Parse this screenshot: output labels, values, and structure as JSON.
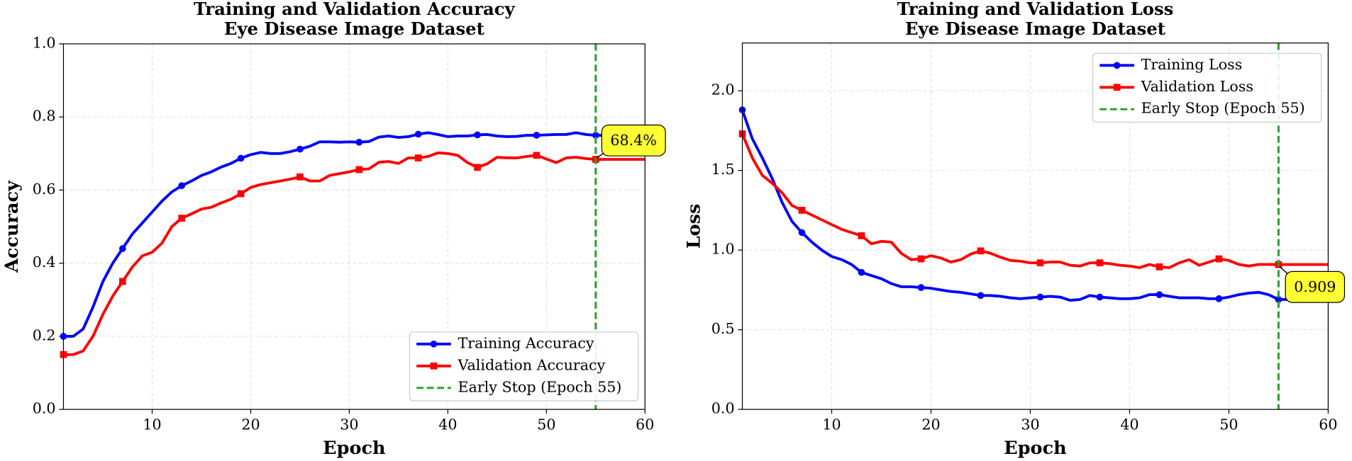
{
  "chart_data": [
    {
      "type": "line",
      "title": "Training and Validation Accuracy",
      "subtitle": "Eye Disease Image Dataset",
      "xlabel": "Epoch",
      "ylabel": "Accuracy",
      "x": [
        1,
        2,
        3,
        4,
        5,
        6,
        7,
        8,
        9,
        10,
        11,
        12,
        13,
        14,
        15,
        16,
        17,
        18,
        19,
        20,
        21,
        22,
        23,
        24,
        25,
        26,
        27,
        28,
        29,
        30,
        31,
        32,
        33,
        34,
        35,
        36,
        37,
        38,
        39,
        40,
        41,
        42,
        43,
        44,
        45,
        46,
        47,
        48,
        49,
        50,
        51,
        52,
        53,
        54,
        55,
        56,
        57,
        58,
        59,
        60
      ],
      "series": [
        {
          "name": "Training Accuracy",
          "color": "#0000ff",
          "marker": "circle",
          "values": [
            0.2,
            0.2,
            0.22,
            0.28,
            0.35,
            0.4,
            0.44,
            0.48,
            0.51,
            0.54,
            0.57,
            0.595,
            0.612,
            0.625,
            0.64,
            0.65,
            0.663,
            0.673,
            0.687,
            0.697,
            0.703,
            0.7,
            0.7,
            0.705,
            0.712,
            0.72,
            0.732,
            0.732,
            0.731,
            0.732,
            0.731,
            0.733,
            0.745,
            0.748,
            0.744,
            0.746,
            0.753,
            0.757,
            0.752,
            0.746,
            0.748,
            0.748,
            0.751,
            0.752,
            0.748,
            0.746,
            0.747,
            0.75,
            0.75,
            0.751,
            0.752,
            0.752,
            0.757,
            0.752,
            0.75,
            0.75,
            0.75,
            0.75,
            0.75,
            0.75
          ]
        },
        {
          "name": "Validation Accuracy",
          "color": "#ff0000",
          "marker": "square",
          "values": [
            0.15,
            0.15,
            0.16,
            0.2,
            0.26,
            0.31,
            0.35,
            0.39,
            0.42,
            0.43,
            0.455,
            0.5,
            0.523,
            0.535,
            0.548,
            0.553,
            0.565,
            0.575,
            0.59,
            0.607,
            0.615,
            0.62,
            0.625,
            0.63,
            0.636,
            0.625,
            0.625,
            0.64,
            0.645,
            0.65,
            0.656,
            0.658,
            0.676,
            0.678,
            0.673,
            0.688,
            0.688,
            0.692,
            0.702,
            0.7,
            0.695,
            0.675,
            0.662,
            0.672,
            0.69,
            0.688,
            0.688,
            0.692,
            0.695,
            0.685,
            0.675,
            0.688,
            0.69,
            0.686,
            0.684,
            0.684,
            0.684,
            0.684,
            0.684,
            0.684
          ]
        }
      ],
      "marker_every": 6,
      "xlim": [
        1,
        60
      ],
      "xticks": [
        10,
        20,
        30,
        40,
        50,
        60
      ],
      "ylim": [
        0,
        1
      ],
      "yticks": [
        {
          "value": 0,
          "label": "0.0"
        },
        0.2,
        0.4,
        0.6,
        0.8,
        {
          "value": 1,
          "label": "1.0"
        }
      ],
      "grid": true,
      "legend": "lower right",
      "vline": {
        "x": 55,
        "label": "Early Stop (Epoch 55)",
        "color": "#2ca02c"
      },
      "annotation": {
        "text": "68.4%",
        "x": 55,
        "y": 0.684
      }
    },
    {
      "type": "line",
      "title": "Training and Validation Loss",
      "subtitle": "Eye Disease Image Dataset",
      "xlabel": "Epoch",
      "ylabel": "Loss",
      "x": [
        1,
        2,
        3,
        4,
        5,
        6,
        7,
        8,
        9,
        10,
        11,
        12,
        13,
        14,
        15,
        16,
        17,
        18,
        19,
        20,
        21,
        22,
        23,
        24,
        25,
        26,
        27,
        28,
        29,
        30,
        31,
        32,
        33,
        34,
        35,
        36,
        37,
        38,
        39,
        40,
        41,
        42,
        43,
        44,
        45,
        46,
        47,
        48,
        49,
        50,
        51,
        52,
        53,
        54,
        55,
        56,
        57,
        58,
        59,
        60
      ],
      "series": [
        {
          "name": "Training Loss",
          "color": "#0000ff",
          "marker": "circle",
          "values": [
            1.88,
            1.7,
            1.58,
            1.45,
            1.3,
            1.18,
            1.11,
            1.05,
            1.0,
            0.96,
            0.94,
            0.91,
            0.86,
            0.84,
            0.82,
            0.79,
            0.77,
            0.77,
            0.765,
            0.76,
            0.75,
            0.74,
            0.735,
            0.725,
            0.715,
            0.715,
            0.71,
            0.7,
            0.695,
            0.7,
            0.705,
            0.71,
            0.705,
            0.685,
            0.69,
            0.715,
            0.705,
            0.7,
            0.695,
            0.695,
            0.7,
            0.72,
            0.72,
            0.71,
            0.7,
            0.7,
            0.7,
            0.695,
            0.695,
            0.705,
            0.72,
            0.73,
            0.735,
            0.72,
            0.69,
            0.69,
            0.69,
            0.69,
            0.69,
            0.69
          ]
        },
        {
          "name": "Validation Loss",
          "color": "#ff0000",
          "marker": "square",
          "values": [
            1.73,
            1.58,
            1.47,
            1.42,
            1.36,
            1.28,
            1.25,
            1.22,
            1.19,
            1.16,
            1.13,
            1.11,
            1.09,
            1.04,
            1.055,
            1.05,
            0.98,
            0.94,
            0.945,
            0.965,
            0.95,
            0.925,
            0.94,
            0.975,
            0.995,
            0.98,
            0.955,
            0.935,
            0.93,
            0.92,
            0.92,
            0.925,
            0.925,
            0.905,
            0.9,
            0.92,
            0.92,
            0.915,
            0.905,
            0.9,
            0.89,
            0.91,
            0.895,
            0.89,
            0.92,
            0.94,
            0.905,
            0.925,
            0.945,
            0.935,
            0.91,
            0.9,
            0.91,
            0.91,
            0.909,
            0.909,
            0.909,
            0.909,
            0.909,
            0.909
          ]
        }
      ],
      "marker_every": 6,
      "xlim": [
        1,
        60
      ],
      "xticks": [
        10,
        20,
        30,
        40,
        50,
        60
      ],
      "ylim": [
        0,
        2.3
      ],
      "yticks": [
        {
          "value": 0,
          "label": "0.0"
        },
        0.5,
        {
          "value": 1,
          "label": "1.0"
        },
        1.5,
        {
          "value": 2,
          "label": "2.0"
        }
      ],
      "grid": true,
      "legend": "upper right",
      "vline": {
        "x": 55,
        "label": "Early Stop (Epoch 55)",
        "color": "#2ca02c"
      },
      "annotation": {
        "text": "0.909",
        "x": 55,
        "y": 0.909
      }
    }
  ]
}
